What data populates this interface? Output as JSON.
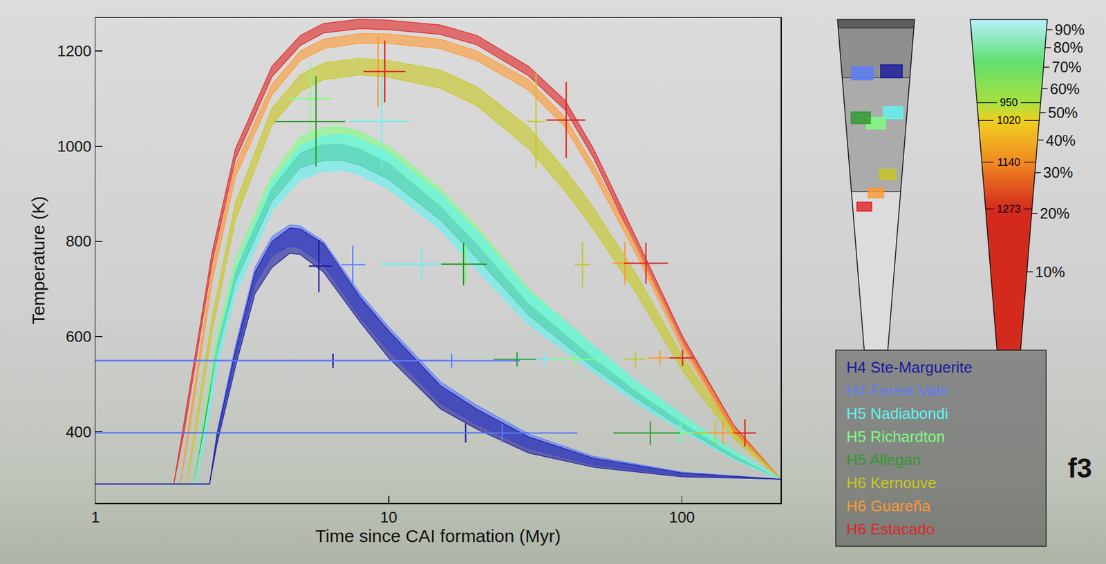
{
  "chart_data": {
    "type": "line",
    "x_label": "Time since CAI formation (Myr)",
    "y_label": "Temperature (K)",
    "log": "x",
    "xlim": [
      1,
      217
    ],
    "xticks": [
      1,
      10,
      100
    ],
    "ylim": [
      250,
      1270
    ],
    "yticks": [
      400,
      600,
      800,
      1000,
      1200
    ],
    "grid": false,
    "legend": "right",
    "panel_label": "f3",
    "series": [
      {
        "name": "H4 Ste-Marguerite",
        "color": "#1a1a9e",
        "depth_percent": 68,
        "band": {
          "x": [
            1,
            2.45,
            2.6,
            3,
            3.5,
            4,
            4.6,
            5,
            6,
            8,
            10,
            15,
            20,
            30,
            50,
            100,
            217
          ],
          "upper": [
            290,
            290,
            395,
            570,
            735,
            800,
            828,
            826,
            795,
            682,
            612,
            497,
            447,
            389,
            344,
            313,
            300
          ],
          "lower": [
            290,
            290,
            375,
            535,
            690,
            745,
            775,
            772,
            735,
            630,
            555,
            448,
            405,
            355,
            325,
            305,
            300
          ]
        },
        "points": {
          "x": [
            5.78,
            6.46,
            18.3
          ],
          "x_low": [
            5.34,
            1,
            1
          ],
          "x_high": [
            6.39,
            16,
            30
          ],
          "y": [
            748,
            549,
            397
          ],
          "y_low": [
            693,
            534,
            377
          ],
          "y_high": [
            803,
            564,
            417
          ]
        }
      },
      {
        "name": "H4 Forest Vale",
        "color": "#5b7cff",
        "depth_percent": 67,
        "band": {
          "x": [
            1,
            2.45,
            2.6,
            3,
            3.5,
            4,
            4.6,
            5,
            6,
            8,
            10,
            15,
            20,
            30,
            50,
            100,
            217
          ],
          "upper": [
            290,
            290,
            400,
            580,
            745,
            810,
            835,
            832,
            800,
            690,
            620,
            505,
            455,
            395,
            348,
            315,
            300
          ],
          "lower": [
            290,
            290,
            385,
            550,
            710,
            770,
            790,
            785,
            750,
            640,
            570,
            460,
            415,
            365,
            330,
            308,
            300
          ]
        },
        "points": {
          "x": [
            7.54,
            16.4,
            24.4
          ],
          "x_low": [
            6.93,
            1,
            1
          ],
          "x_high": [
            8.32,
            28,
            44
          ],
          "y": [
            751,
            549,
            397
          ],
          "y_low": [
            711,
            534,
            377
          ],
          "y_high": [
            791,
            564,
            417
          ]
        }
      },
      {
        "name": "H5 Nadiabondi",
        "color": "#5ff5f5",
        "depth_percent": 50,
        "band": {
          "x": [
            1,
            2.2,
            2.35,
            2.6,
            3,
            4,
            5,
            6,
            7,
            8,
            10,
            15,
            20,
            30,
            50,
            70,
            100,
            150,
            217
          ],
          "upper": [
            290,
            290,
            395,
            575,
            740,
            925,
            1000,
            1022,
            1025,
            1015,
            985,
            900,
            820,
            695,
            580,
            505,
            435,
            360,
            300
          ],
          "lower": [
            290,
            290,
            375,
            540,
            690,
            865,
            930,
            948,
            950,
            940,
            910,
            825,
            740,
            625,
            525,
            460,
            402,
            342,
            300
          ]
        },
        "points": {
          "x": [
            9.46,
            12.97,
            34.2,
            98.1
          ],
          "x_low": [
            7.35,
            9.4,
            27.7,
            88
          ],
          "x_high": [
            11.7,
            17.8,
            39.7,
            110
          ],
          "y": [
            1052,
            752,
            552,
            397
          ],
          "y_low": [
            957,
            717,
            537,
            377
          ],
          "y_high": [
            1147,
            787,
            567,
            417
          ]
        }
      },
      {
        "name": "H5 Richardton",
        "color": "#80ff80",
        "depth_percent": 46,
        "band": {
          "x": [
            1,
            2.15,
            2.3,
            2.6,
            3,
            4,
            5,
            6,
            7,
            8,
            10,
            15,
            20,
            30,
            50,
            70,
            100,
            150,
            217
          ],
          "upper": [
            290,
            290,
            400,
            600,
            760,
            940,
            1020,
            1040,
            1040,
            1030,
            1000,
            910,
            830,
            700,
            580,
            505,
            435,
            360,
            300
          ],
          "lower": [
            290,
            290,
            390,
            585,
            740,
            915,
            990,
            1005,
            1005,
            995,
            965,
            875,
            795,
            670,
            555,
            485,
            420,
            352,
            300
          ]
        },
        "points": {
          "x": [
            5.41,
            18.3,
            43.1,
            99.5
          ],
          "x_low": [
            4.58,
            16.3,
            35.5,
            88.3
          ],
          "x_high": [
            6.39,
            21.6,
            53.8,
            113.6
          ],
          "y": [
            1100,
            752,
            552,
            397
          ],
          "y_low": [
            1025,
            712,
            537,
            377
          ],
          "y_high": [
            1175,
            792,
            567,
            417
          ]
        }
      },
      {
        "name": "H5 Allegan",
        "color": "#2f9a2f",
        "depth_percent": 48,
        "band": {
          "x": [
            1,
            2.15,
            2.3,
            2.6,
            3,
            4,
            5,
            6,
            7,
            8,
            10,
            15,
            20,
            30,
            50,
            70,
            100,
            150,
            217
          ],
          "upper": [
            290,
            290,
            390,
            580,
            735,
            910,
            985,
            1005,
            1005,
            995,
            965,
            875,
            795,
            670,
            555,
            485,
            420,
            352,
            300
          ],
          "lower": [
            290,
            290,
            380,
            565,
            715,
            885,
            955,
            970,
            970,
            960,
            930,
            845,
            765,
            645,
            535,
            470,
            408,
            345,
            300
          ]
        },
        "points": {
          "x": [
            5.65,
            18.0,
            27.4,
            78.0
          ],
          "x_low": [
            4.1,
            15.1,
            22.8,
            58.4
          ],
          "x_high": [
            7.1,
            21.6,
            31.9,
            98.5
          ],
          "y": [
            1052,
            752,
            552,
            397
          ],
          "y_low": [
            957,
            707,
            537,
            372
          ],
          "y_high": [
            1147,
            797,
            567,
            422
          ]
        }
      },
      {
        "name": "H6 Kernouve",
        "color": "#c8c81e",
        "depth_percent": 29.5,
        "band": {
          "x": [
            1,
            2.05,
            2.2,
            2.5,
            3,
            4,
            5,
            6,
            8,
            10,
            15,
            20,
            30,
            40,
            50,
            70,
            100,
            150,
            217
          ],
          "upper": [
            290,
            290,
            420,
            640,
            880,
            1080,
            1150,
            1175,
            1185,
            1180,
            1160,
            1125,
            1040,
            950,
            870,
            730,
            560,
            400,
            300
          ],
          "lower": [
            290,
            290,
            400,
            610,
            845,
            1045,
            1115,
            1140,
            1150,
            1145,
            1122,
            1085,
            995,
            905,
            825,
            690,
            530,
            385,
            300
          ]
        },
        "points": {
          "x": [
            31.8,
            45.8,
            69.4,
            130
          ],
          "x_low": [
            29.7,
            43,
            63.5,
            110
          ],
          "x_high": [
            34.1,
            48.7,
            75.1,
            154
          ],
          "y": [
            1052,
            751,
            552,
            397
          ],
          "y_low": [
            951,
            704,
            535,
            372
          ],
          "y_high": [
            1153,
            798,
            569,
            422
          ]
        }
      },
      {
        "name": "H6 Guareña",
        "color": "#ff9933",
        "depth_percent": 24.7,
        "band": {
          "x": [
            1,
            1.95,
            2.1,
            2.5,
            3,
            4,
            5,
            6,
            8,
            10,
            15,
            20,
            30,
            40,
            50,
            70,
            100,
            150,
            217
          ],
          "upper": [
            290,
            290,
            430,
            740,
            960,
            1130,
            1200,
            1225,
            1237,
            1236,
            1225,
            1200,
            1140,
            1060,
            960,
            790,
            590,
            410,
            300
          ],
          "lower": [
            290,
            290,
            410,
            715,
            935,
            1108,
            1180,
            1205,
            1217,
            1216,
            1205,
            1180,
            1118,
            1040,
            940,
            772,
            575,
            398,
            300
          ]
        },
        "points": {
          "x": [
            9.2,
            63.9,
            84.2,
            138
          ],
          "x_low": [
            8.2,
            58,
            77,
            123
          ],
          "x_high": [
            10.5,
            69,
            92,
            154
          ],
          "y": [
            1157,
            754,
            555,
            397
          ],
          "y_low": [
            1082,
            709,
            540,
            372
          ],
          "y_high": [
            1232,
            799,
            570,
            422
          ]
        }
      },
      {
        "name": "H6 Estacado",
        "color": "#e02424",
        "depth_percent": 21.5,
        "band": {
          "x": [
            1,
            1.85,
            2,
            2.5,
            3,
            4,
            5,
            6,
            8,
            10,
            15,
            20,
            30,
            40,
            50,
            70,
            100,
            150,
            217
          ],
          "upper": [
            290,
            290,
            415,
            777,
            994,
            1168,
            1233,
            1258,
            1267,
            1265,
            1255,
            1233,
            1168,
            1096,
            994,
            806,
            603,
            414,
            300
          ],
          "lower": [
            290,
            290,
            395,
            755,
            972,
            1146,
            1212,
            1238,
            1247,
            1245,
            1235,
            1213,
            1148,
            1076,
            975,
            788,
            588,
            402,
            300
          ]
        },
        "points": {
          "x": [
            9.7,
            40.3,
            75.4,
            100.5,
            164
          ],
          "x_low": [
            8.2,
            34.5,
            63.5,
            90.8,
            150
          ],
          "x_high": [
            11.4,
            46.8,
            89.6,
            110,
            179
          ],
          "y": [
            1157,
            1055,
            754,
            555,
            397
          ],
          "y_low": [
            1092,
            975,
            711,
            538,
            368
          ],
          "y_high": [
            1222,
            1135,
            797,
            572,
            426
          ]
        }
      }
    ],
    "cone": {
      "layer_boundaries": [
        91,
        65,
        25
      ]
    },
    "color_scale": {
      "contours": [
        {
          "temperature": 950,
          "percent": 54
        },
        {
          "temperature": 1020,
          "percent": 47
        },
        {
          "temperature": 1140,
          "percent": 33
        },
        {
          "temperature": 1273,
          "percent": 21
        }
      ],
      "ticks": [
        {
          "value": 90,
          "label": "90%"
        },
        {
          "value": 80,
          "label": "80%"
        },
        {
          "value": 70,
          "label": "70%"
        },
        {
          "value": 60,
          "label": "60%"
        },
        {
          "value": 50,
          "label": "50%"
        },
        {
          "value": 40,
          "label": "40%"
        },
        {
          "value": 30,
          "label": "30%"
        },
        {
          "value": 20,
          "label": "20%"
        },
        {
          "value": 10,
          "label": "10%"
        }
      ]
    }
  }
}
